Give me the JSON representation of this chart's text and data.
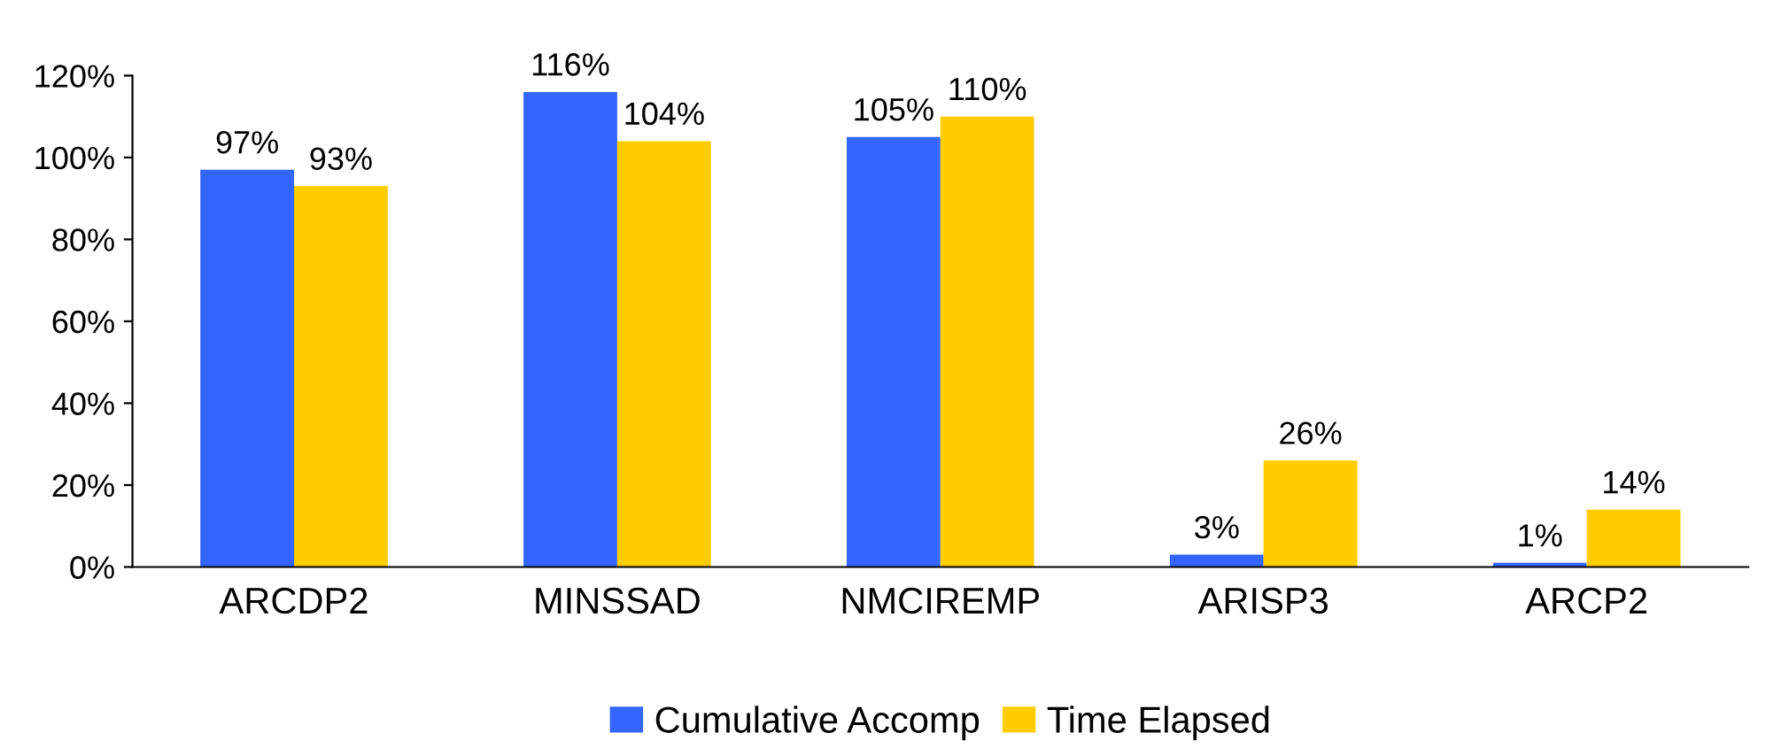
{
  "chart_data": {
    "type": "bar",
    "categories": [
      "ARCDP2",
      "MINSSAD",
      "NMCIREMP",
      "ARISP3",
      "ARCP2"
    ],
    "series": [
      {
        "name": "Cumulative Accomp",
        "color": "#3366ff",
        "values": [
          97,
          116,
          105,
          3,
          1
        ],
        "value_labels": [
          "97%",
          "116%",
          "105%",
          "3%",
          "1%"
        ]
      },
      {
        "name": "Time Elapsed",
        "color": "#ffcc00",
        "values": [
          93,
          104,
          110,
          26,
          14
        ],
        "value_labels": [
          "93%",
          "104%",
          "110%",
          "26%",
          "14%"
        ]
      }
    ],
    "ylim": [
      0,
      120
    ],
    "yticks": [
      {
        "value": 0,
        "label": "0%"
      },
      {
        "value": 20,
        "label": "20%"
      },
      {
        "value": 40,
        "label": "40%"
      },
      {
        "value": 60,
        "label": "60%"
      },
      {
        "value": 80,
        "label": "80%"
      },
      {
        "value": 100,
        "label": "100%"
      },
      {
        "value": 120,
        "label": "120%"
      }
    ],
    "grid": false,
    "legend": "bottom"
  }
}
